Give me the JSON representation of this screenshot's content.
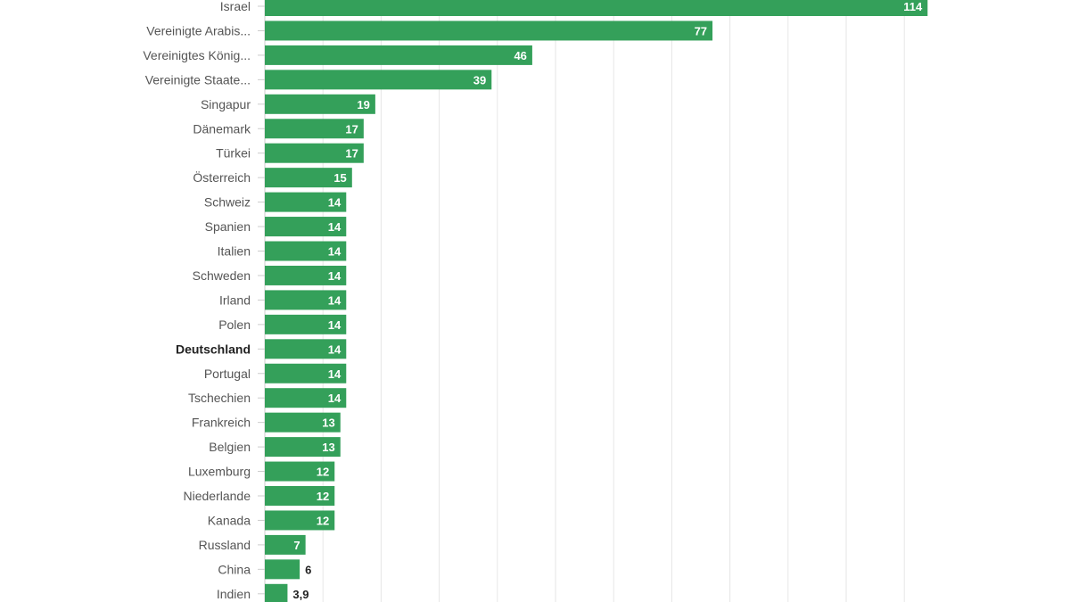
{
  "chart_data": {
    "type": "bar",
    "orientation": "horizontal",
    "title": "",
    "xlabel": "",
    "ylabel": "",
    "xlim": [
      0,
      114
    ],
    "grid": true,
    "grid_step": 10,
    "bar_color": "#34a05a",
    "highlighted_category": "Deutschland",
    "categories": [
      "Israel",
      "Vereinigte Arabis...",
      "Vereinigtes König...",
      "Vereinigte Staate...",
      "Singapur",
      "Dänemark",
      "Türkei",
      "Österreich",
      "Schweiz",
      "Spanien",
      "Italien",
      "Schweden",
      "Irland",
      "Polen",
      "Deutschland",
      "Portugal",
      "Tschechien",
      "Frankreich",
      "Belgien",
      "Luxemburg",
      "Niederlande",
      "Kanada",
      "Russland",
      "China",
      "Indien"
    ],
    "values": [
      114,
      77,
      46,
      39,
      19,
      17,
      17,
      15,
      14,
      14,
      14,
      14,
      14,
      14,
      14,
      14,
      14,
      13,
      13,
      12,
      12,
      12,
      7,
      6,
      3.9
    ],
    "value_labels": [
      "114",
      "77",
      "46",
      "39",
      "19",
      "17",
      "17",
      "15",
      "14",
      "14",
      "14",
      "14",
      "14",
      "14",
      "14",
      "14",
      "14",
      "13",
      "13",
      "12",
      "12",
      "12",
      "7",
      "6",
      "3,9"
    ]
  }
}
